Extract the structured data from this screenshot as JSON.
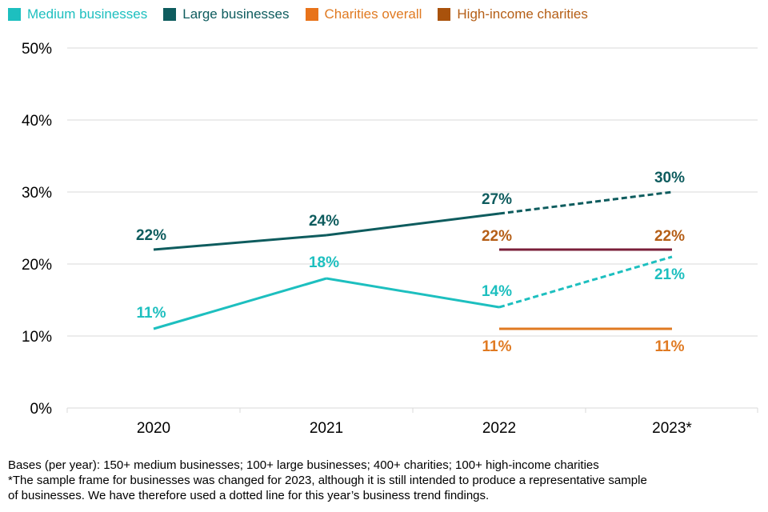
{
  "chart_data": {
    "type": "line",
    "categories": [
      "2020",
      "2021",
      "2022",
      "2023*"
    ],
    "ylim": [
      0,
      50
    ],
    "yticks": [
      0,
      10,
      20,
      30,
      40,
      50
    ],
    "ytick_labels": [
      "0%",
      "10%",
      "20%",
      "30%",
      "40%",
      "50%"
    ],
    "grid": true,
    "legend_position": "top-left",
    "series": [
      {
        "name": "Medium businesses",
        "color": "#1dbfbf",
        "values": [
          11,
          18,
          14,
          21
        ],
        "labels": [
          "11%",
          "18%",
          "14%",
          "21%"
        ],
        "dashed_last_segment": true
      },
      {
        "name": "Large businesses",
        "color": "#0e5c5e",
        "values": [
          22,
          24,
          27,
          30
        ],
        "labels": [
          "22%",
          "24%",
          "27%",
          "30%"
        ],
        "dashed_last_segment": true
      },
      {
        "name": "Charities overall",
        "color": "#e8731a",
        "line_color": "#e07a22",
        "label_color": "#e07a22",
        "values": [
          null,
          null,
          11,
          11
        ],
        "labels": [
          null,
          null,
          "11%",
          "11%"
        ],
        "dashed_last_segment": false
      },
      {
        "name": "High-income charities",
        "color": "#a9520c",
        "line_color": "#7a1f3a",
        "label_color": "#b55e16",
        "values": [
          null,
          null,
          22,
          22
        ],
        "labels": [
          null,
          null,
          "22%",
          "22%"
        ],
        "dashed_last_segment": false
      }
    ]
  },
  "footnotes": [
    "Bases (per year): 150+ medium businesses; 100+ large businesses; 400+ charities; 100+ high-income charities",
    "*The sample frame for businesses was changed for 2023, although it is still intended to produce a representative sample",
    "of businesses. We have therefore used a dotted line for this year’s business trend findings."
  ]
}
